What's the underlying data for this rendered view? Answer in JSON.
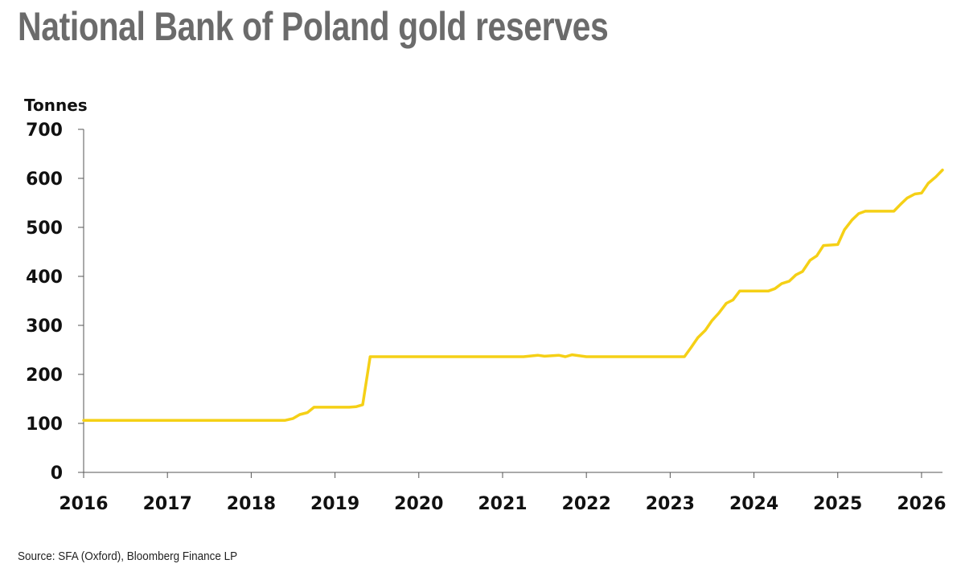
{
  "title": "National Bank of Poland gold reserves",
  "source": "Source: SFA (Oxford), Bloomberg Finance LP",
  "chart_data": {
    "type": "line",
    "title": "National Bank of Poland gold reserves",
    "ylabel": "Tonnes",
    "xlabel": "",
    "xlim": [
      2016,
      2026.25
    ],
    "ylim": [
      0,
      700
    ],
    "xticks": [
      "2016",
      "2017",
      "2018",
      "2019",
      "2020",
      "2021",
      "2022",
      "2023",
      "2024",
      "2025",
      "2026"
    ],
    "yticks": [
      "0",
      "100",
      "200",
      "300",
      "400",
      "500",
      "600",
      "700"
    ],
    "grid": false,
    "legend": "none",
    "line_color": "#f5d016",
    "series": [
      {
        "x": [
          2016.0,
          2018.4,
          2018.5,
          2018.58,
          2018.67,
          2018.75,
          2019.17,
          2019.25,
          2019.33,
          2019.42,
          2021.25,
          2021.42,
          2021.5,
          2021.67,
          2021.75,
          2021.83,
          2022.0,
          2023.17,
          2023.25,
          2023.33,
          2023.42,
          2023.5,
          2023.58,
          2023.67,
          2023.75,
          2023.83,
          2024.17,
          2024.25,
          2024.33,
          2024.42,
          2024.5,
          2024.58,
          2024.67,
          2024.75,
          2024.83,
          2025.0,
          2025.08,
          2025.17,
          2025.25,
          2025.33,
          2025.67,
          2025.75,
          2025.83,
          2025.92,
          2026.0,
          2026.08,
          2026.17,
          2026.25
        ],
        "y": [
          106,
          106,
          110,
          118,
          122,
          133,
          133,
          134,
          138,
          236,
          236,
          239,
          237,
          239,
          236,
          240,
          236,
          236,
          255,
          275,
          290,
          310,
          325,
          345,
          352,
          370,
          370,
          375,
          385,
          390,
          403,
          410,
          433,
          442,
          463,
          465,
          495,
          515,
          528,
          533,
          533,
          547,
          560,
          568,
          570,
          590,
          603,
          617
        ]
      }
    ]
  }
}
